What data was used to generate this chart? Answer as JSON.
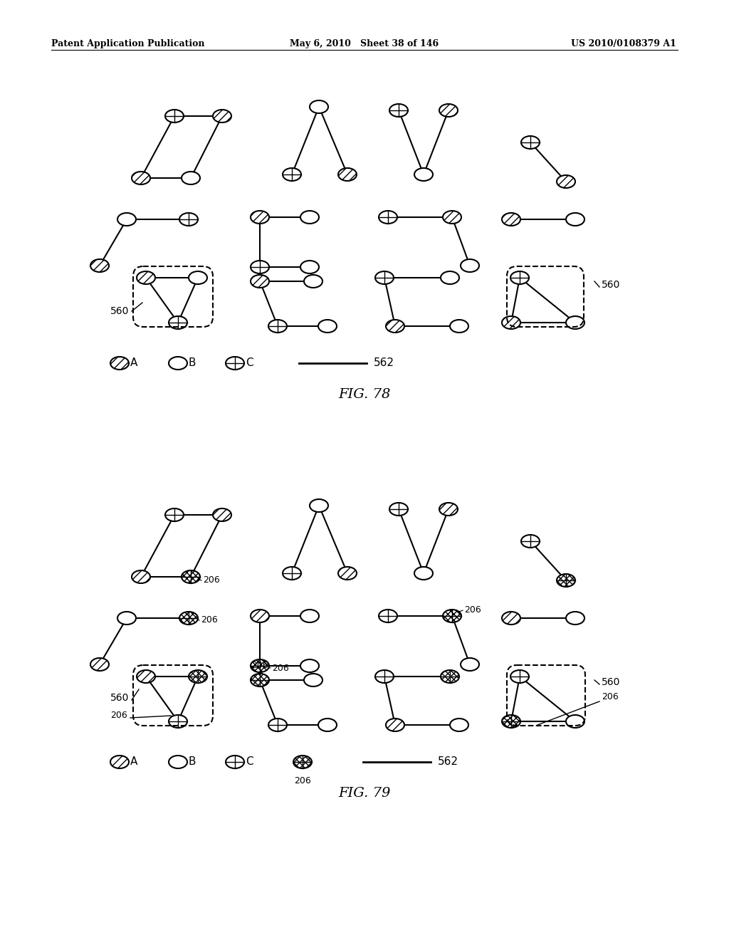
{
  "header_left": "Patent Application Publication",
  "header_mid": "May 6, 2010   Sheet 38 of 146",
  "header_right": "US 2010/0108379 A1",
  "fig78_label": "FIG. 78",
  "fig79_label": "FIG. 79",
  "label_560": "560",
  "label_206": "206",
  "label_562": "562",
  "legend_A": "A",
  "legend_B": "B",
  "legend_C": "C",
  "bg_color": "#ffffff"
}
